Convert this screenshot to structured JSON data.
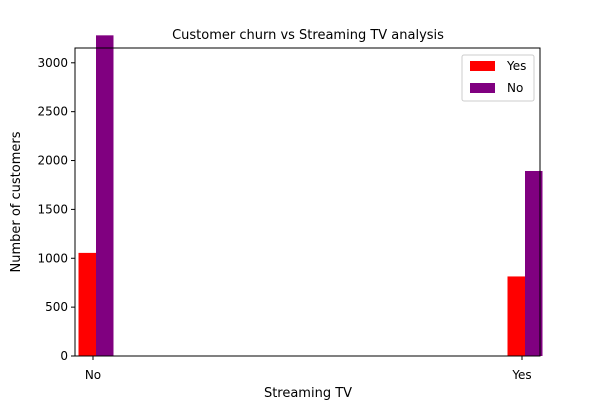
{
  "chart_data": {
    "type": "bar",
    "title": "Customer churn vs Streaming TV analysis",
    "xlabel": "Streaming TV",
    "ylabel": "Number of customers",
    "x": [
      "No",
      "Yes"
    ],
    "ylim": [
      0,
      3400
    ],
    "yticks": [
      0,
      500,
      1000,
      1500,
      2000,
      2500,
      3000
    ],
    "grid": false,
    "legend_position": "top-right",
    "series": [
      {
        "name": "Yes",
        "color": "#ff0000",
        "values": [
          1055,
          814
        ]
      },
      {
        "name": "No",
        "color": "#800080",
        "values": [
          3281,
          1893
        ]
      }
    ]
  }
}
